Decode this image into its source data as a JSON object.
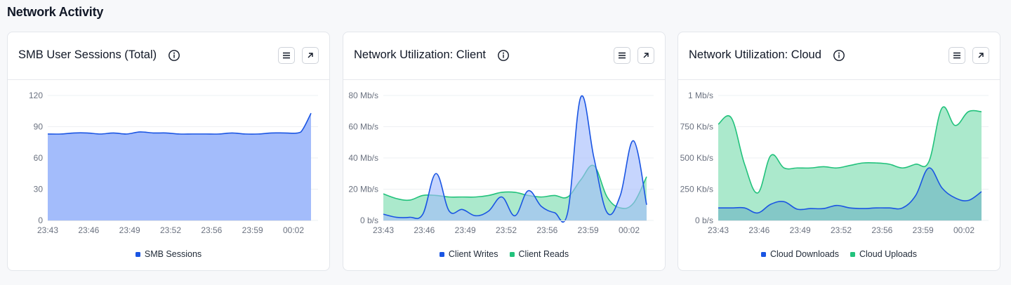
{
  "page": {
    "title": "Network Activity"
  },
  "colors": {
    "blue": "#1a55e3",
    "blue_fill": "#a3bcfb",
    "green": "#22c27c",
    "green_fill": "#a7e8c9"
  },
  "cards": [
    {
      "title": "SMB User Sessions (Total)",
      "info_icon": "info-icon",
      "menu_icon": "menu-icon",
      "expand_icon": "expand-icon",
      "legend": [
        {
          "label": "SMB Sessions",
          "color": "#1a55e3"
        }
      ]
    },
    {
      "title": "Network Utilization: Client",
      "info_icon": "info-icon",
      "menu_icon": "menu-icon",
      "expand_icon": "expand-icon",
      "legend": [
        {
          "label": "Client Writes",
          "color": "#1a55e3"
        },
        {
          "label": "Client Reads",
          "color": "#22c27c"
        }
      ]
    },
    {
      "title": "Network Utilization: Cloud",
      "info_icon": "info-icon",
      "menu_icon": "menu-icon",
      "expand_icon": "expand-icon",
      "legend": [
        {
          "label": "Cloud Downloads",
          "color": "#1a55e3"
        },
        {
          "label": "Cloud Uploads",
          "color": "#22c27c"
        }
      ]
    }
  ],
  "chart_data": [
    {
      "type": "area",
      "title": "SMB User Sessions (Total)",
      "xlabel": "",
      "ylabel": "",
      "x_ticks": [
        "23:43",
        "23:46",
        "23:49",
        "23:52",
        "23:56",
        "23:59",
        "00:02"
      ],
      "y_ticks": [
        {
          "value": 0,
          "label": "0"
        },
        {
          "value": 30,
          "label": "30"
        },
        {
          "value": 60,
          "label": "60"
        },
        {
          "value": 90,
          "label": "90"
        },
        {
          "value": 120,
          "label": "120"
        }
      ],
      "ylim": [
        0,
        120
      ],
      "x_range": [
        0,
        20
      ],
      "grid": true,
      "legend_position": "bottom-center",
      "series": [
        {
          "name": "SMB Sessions",
          "color": "#1a55e3",
          "fill": "#a3bcfb",
          "x": [
            0,
            1,
            2,
            3,
            4,
            5,
            6,
            7,
            8,
            9,
            10,
            11,
            12,
            13,
            14,
            15,
            16,
            17,
            18,
            19,
            19.4,
            20
          ],
          "values": [
            83,
            83,
            84,
            84,
            83,
            84,
            83,
            85,
            84,
            84,
            83,
            83,
            83,
            83,
            84,
            83,
            83,
            84,
            84,
            84,
            88,
            103
          ]
        }
      ]
    },
    {
      "type": "area",
      "title": "Network Utilization: Client",
      "xlabel": "",
      "ylabel": "",
      "x_ticks": [
        "23:43",
        "23:46",
        "23:49",
        "23:52",
        "23:56",
        "23:59",
        "00:02"
      ],
      "y_ticks": [
        {
          "value": 0,
          "label": "0 b/s"
        },
        {
          "value": 20,
          "label": "20 Mb/s"
        },
        {
          "value": 40,
          "label": "40 Mb/s"
        },
        {
          "value": 60,
          "label": "60 Mb/s"
        },
        {
          "value": 80,
          "label": "80 Mb/s"
        }
      ],
      "ylim": [
        0,
        80
      ],
      "x_range": [
        0,
        20
      ],
      "grid": true,
      "legend_position": "bottom-center",
      "series": [
        {
          "name": "Client Reads",
          "color": "#22c27c",
          "fill": "#a7e8c9",
          "x": [
            0,
            1,
            2,
            3,
            4,
            5,
            6,
            7,
            8,
            9,
            10,
            11,
            12,
            13,
            14,
            15,
            16,
            17,
            18,
            19,
            20
          ],
          "values": [
            17,
            14,
            13,
            16,
            16,
            15,
            15,
            15,
            16,
            18,
            18,
            16,
            15,
            16,
            15,
            26,
            35,
            15,
            8,
            11,
            28
          ]
        },
        {
          "name": "Client Writes",
          "color": "#1a55e3",
          "fill": "#a3bcfb",
          "x": [
            0,
            1,
            2,
            3,
            4,
            5,
            6,
            7,
            8,
            9,
            10,
            11,
            12,
            13,
            14,
            15,
            16,
            17,
            18,
            19,
            20
          ],
          "values": [
            4,
            2,
            2,
            4,
            30,
            6,
            7,
            3,
            6,
            15,
            3,
            19,
            9,
            5,
            5,
            79,
            40,
            5,
            16,
            51,
            10
          ]
        }
      ]
    },
    {
      "type": "area",
      "title": "Network Utilization: Cloud",
      "xlabel": "",
      "ylabel": "",
      "x_ticks": [
        "23:43",
        "23:46",
        "23:49",
        "23:52",
        "23:56",
        "23:59",
        "00:02"
      ],
      "y_ticks": [
        {
          "value": 0,
          "label": "0 b/s"
        },
        {
          "value": 250,
          "label": "250 Kb/s"
        },
        {
          "value": 500,
          "label": "500 Kb/s"
        },
        {
          "value": 750,
          "label": "750 Kb/s"
        },
        {
          "value": 1000,
          "label": "1 Mb/s"
        }
      ],
      "ylim": [
        0,
        1000
      ],
      "x_range": [
        0,
        20
      ],
      "grid": true,
      "legend_position": "bottom-center",
      "series": [
        {
          "name": "Cloud Uploads",
          "color": "#22c27c",
          "fill": "#a7e8c9",
          "x": [
            0,
            1,
            2,
            3,
            4,
            5,
            6,
            7,
            8,
            9,
            10,
            11,
            12,
            13,
            14,
            15,
            16,
            17,
            18,
            19,
            20
          ],
          "values": [
            770,
            820,
            450,
            220,
            520,
            420,
            420,
            420,
            430,
            420,
            440,
            460,
            460,
            450,
            420,
            450,
            470,
            900,
            760,
            870,
            870
          ],
          "_note": ""
        },
        {
          "name": "Cloud Downloads",
          "color": "#1a55e3",
          "fill": "#6cb3c4",
          "x": [
            0,
            1,
            2,
            3,
            4,
            5,
            6,
            7,
            8,
            9,
            10,
            11,
            12,
            13,
            14,
            15,
            16,
            17,
            18,
            19,
            20
          ],
          "values": [
            100,
            100,
            100,
            60,
            130,
            150,
            90,
            95,
            95,
            120,
            100,
            95,
            100,
            100,
            100,
            200,
            420,
            260,
            180,
            160,
            230
          ]
        }
      ]
    }
  ]
}
